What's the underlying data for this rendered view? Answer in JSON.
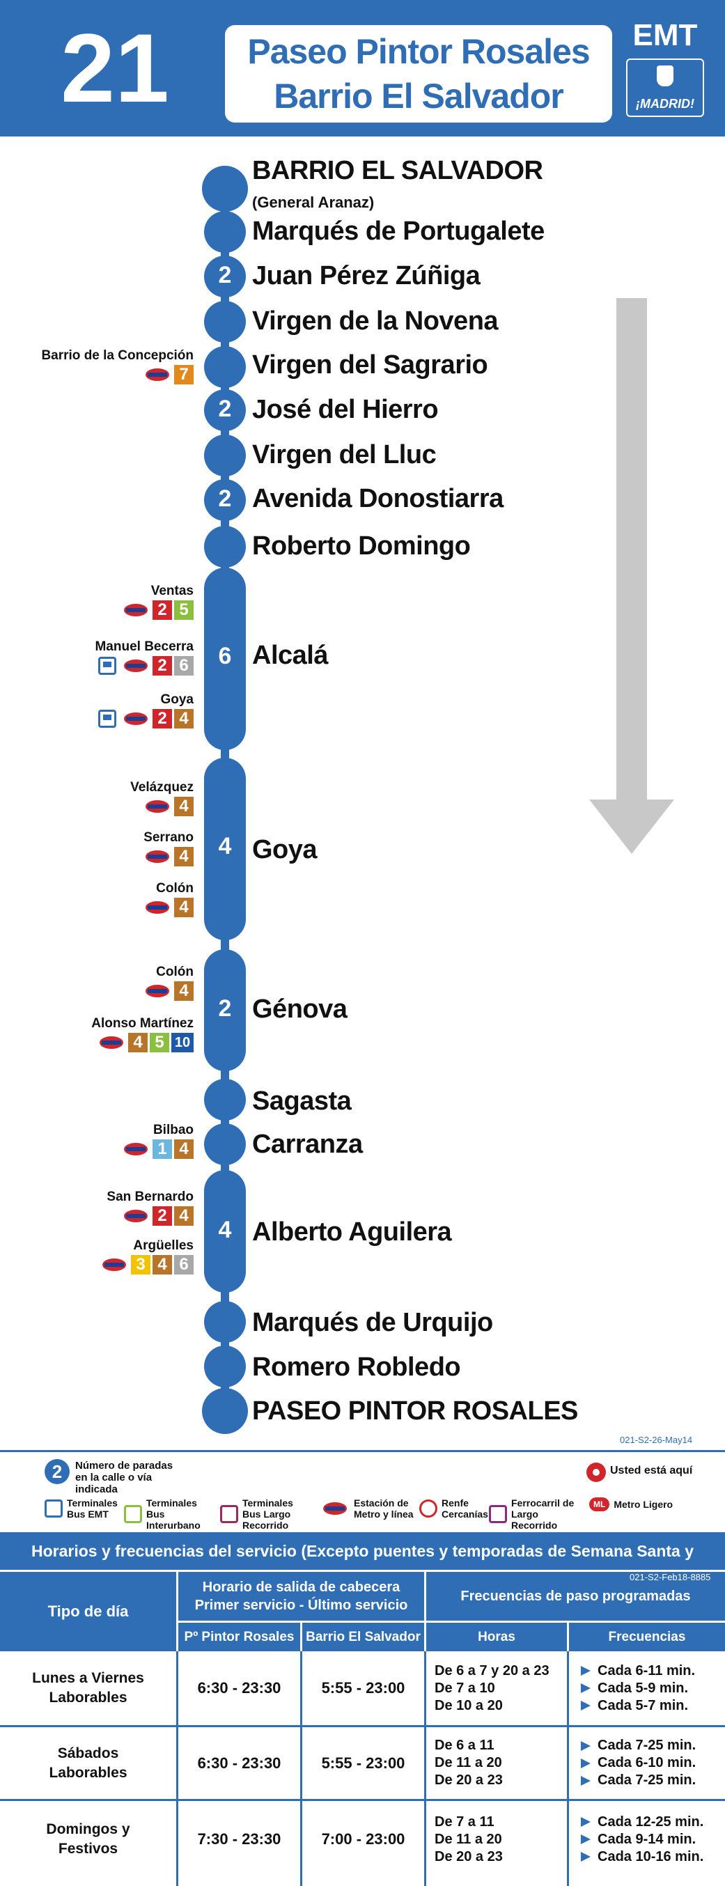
{
  "header": {
    "line_number": "21",
    "destination_line1": "Paseo Pintor Rosales",
    "destination_line2": "Barrio El Salvador",
    "operator": "EMT",
    "city_logo_text": "¡MADRID!"
  },
  "stops": [
    {
      "name": "BARRIO EL SALVADOR",
      "sub": "(General Aranaz)"
    },
    {
      "name": "Marqués de Portugalete"
    },
    {
      "name": "Juan Pérez Zúñiga",
      "count": "2"
    },
    {
      "name": "Virgen de la Novena"
    },
    {
      "name": "Virgen del Sagrario"
    },
    {
      "name": "José del Hierro",
      "count": "2"
    },
    {
      "name": "Virgen del Lluc"
    },
    {
      "name": "Avenida Donostiarra",
      "count": "2"
    },
    {
      "name": "Roberto Domingo"
    },
    {
      "name": "Alcalá",
      "count": "6"
    },
    {
      "name": "Goya",
      "count": "4"
    },
    {
      "name": "Génova",
      "count": "2"
    },
    {
      "name": "Sagasta"
    },
    {
      "name": "Carranza"
    },
    {
      "name": "Alberto Aguilera",
      "count": "4"
    },
    {
      "name": "Marqués de Urquijo"
    },
    {
      "name": "Romero Robledo"
    },
    {
      "name": "PASEO PINTOR ROSALES"
    }
  ],
  "connections": [
    {
      "name": "Barrio de la Concepción",
      "lines": [
        "7"
      ]
    },
    {
      "name": "Ventas",
      "lines": [
        "2",
        "5"
      ]
    },
    {
      "name": "Manuel Becerra",
      "lines": [
        "2",
        "6"
      ]
    },
    {
      "name": "Goya",
      "lines": [
        "2",
        "4"
      ]
    },
    {
      "name": "Velázquez",
      "lines": [
        "4"
      ]
    },
    {
      "name": "Serrano",
      "lines": [
        "4"
      ]
    },
    {
      "name": "Colón",
      "lines": [
        "4"
      ]
    },
    {
      "name": "Colón",
      "lines": [
        "4"
      ]
    },
    {
      "name": "Alonso Martínez",
      "lines": [
        "4",
        "5",
        "10"
      ]
    },
    {
      "name": "Bilbao",
      "lines": [
        "1",
        "4"
      ]
    },
    {
      "name": "San Bernardo",
      "lines": [
        "2",
        "4"
      ]
    },
    {
      "name": "Argüelles",
      "lines": [
        "3",
        "4",
        "6"
      ]
    }
  ],
  "metro_colors": {
    "1": "#6cb7e0",
    "2": "#d0262b",
    "3": "#f2c300",
    "4": "#b8752a",
    "5": "#8bbf3f",
    "6": "#a8a8a8",
    "7": "#e08a1e",
    "10": "#1f5aa6"
  },
  "codes": {
    "route": "021-S2-26-May14",
    "table": "021-S2-Feb18-8885"
  },
  "legend": {
    "count_text": "Número de paradas en la calle o vía indicada",
    "here": "Usted está aquí",
    "terminales_emt": "Terminales Bus EMT",
    "terminales_interurbano": "Terminales Bus Interurbano",
    "terminales_largo": "Terminales Bus Largo Recorrido",
    "metro": "Estación de Metro y línea",
    "renfe": "Renfe Cercanías",
    "ferrocarril": "Ferrocarril de Largo Recorrido",
    "metro_ligero": "Metro Ligero",
    "ml_abbr": "ML",
    "count_example": "2"
  },
  "schedule": {
    "title": "Horarios y frecuencias del servicio (Excepto puentes y temporadas de Semana Santa y Verano)",
    "col_tipo": "Tipo de día",
    "col_horario": "Horario de salida de cabecera",
    "col_horario2": "Primer servicio - Último servicio",
    "col_frecuencias_group": "Frecuencias de paso programadas",
    "sub_pintor": "Pº Pintor Rosales",
    "sub_salvador": "Barrio El Salvador",
    "sub_horas": "Horas",
    "sub_frecuencias": "Frecuencias",
    "rows": [
      {
        "tipo1": "Lunes a Viernes",
        "tipo2": "Laborables",
        "pintor": "6:30 - 23:30",
        "salvador": "5:55 - 23:00",
        "horas": [
          "De 6 a 7 y 20 a 23",
          "De 7 a 10",
          "De 10 a 20"
        ],
        "freqs": [
          "Cada 6-11 min.",
          "Cada 5-9 min.",
          "Cada 5-7 min."
        ]
      },
      {
        "tipo1": "Sábados",
        "tipo2": "Laborables",
        "pintor": "6:30 - 23:30",
        "salvador": "5:55 - 23:00",
        "horas": [
          "De 6 a 11",
          "De 11 a 20",
          "De 20 a 23"
        ],
        "freqs": [
          "Cada 7-25 min.",
          "Cada 6-10 min.",
          "Cada 7-25 min."
        ]
      },
      {
        "tipo1": "Domingos y",
        "tipo2": "Festivos",
        "pintor": "7:30 - 23:30",
        "salvador": "7:00 - 23:00",
        "horas": [
          "De 7 a 11",
          "De 11 a 20",
          "De 20 a 23"
        ],
        "freqs": [
          "Cada 12-25 min.",
          "Cada 9-14 min.",
          "Cada 10-16 min."
        ]
      }
    ]
  }
}
